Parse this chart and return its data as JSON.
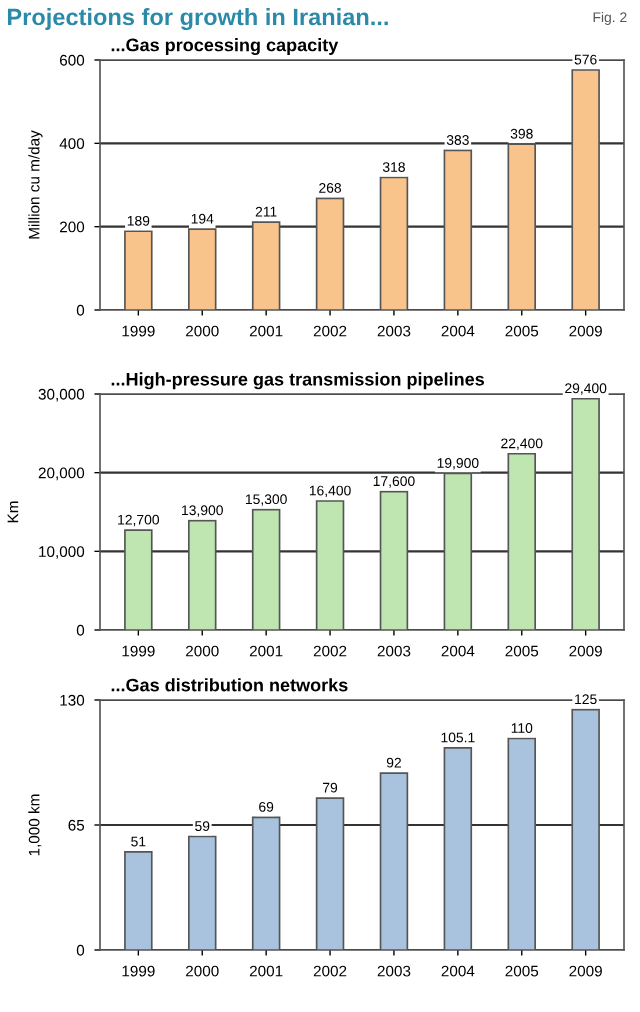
{
  "chart_data": [
    {
      "type": "bar",
      "title": "Projections for growth in Iranian...",
      "subtitle": "...Gas processing capacity",
      "annotations": [
        "Fig. 2"
      ],
      "ylabel": "Million cu m/day",
      "categories": [
        "1999",
        "2000",
        "2001",
        "2002",
        "2003",
        "2004",
        "2005",
        "2009"
      ],
      "values": [
        189,
        194,
        211,
        268,
        318,
        383,
        398,
        576
      ],
      "color": "#f8c48c",
      "data_labels": true,
      "ylim": [
        0,
        600
      ],
      "yticks": [
        0,
        200,
        400,
        600
      ],
      "grid": "y"
    },
    {
      "type": "bar",
      "subtitle": "...High-pressure gas transmission pipelines",
      "ylabel": "Km",
      "categories": [
        "1999",
        "2000",
        "2001",
        "2002",
        "2003",
        "2004",
        "2005",
        "2009"
      ],
      "values": [
        12700,
        13900,
        15300,
        16400,
        17600,
        19900,
        22400,
        29400
      ],
      "color": "#bfe6b0",
      "value_labels": [
        "12,700",
        "13,900",
        "15,300",
        "16,400",
        "17,600",
        "19,900",
        "22,400",
        "29,400"
      ],
      "ylim": [
        0,
        30000
      ],
      "yticks": [
        {
          "value": 0,
          "label": "0"
        },
        {
          "value": 10000,
          "label": "10,000"
        },
        {
          "value": 20000,
          "label": "20,000"
        },
        {
          "value": 30000,
          "label": "30,000"
        }
      ],
      "grid": "y"
    },
    {
      "type": "bar",
      "subtitle": "...Gas distribution networks",
      "ylabel": "1,000 km",
      "categories": [
        "1999",
        "2000",
        "2001",
        "2002",
        "2003",
        "2004",
        "2005",
        "2009"
      ],
      "values": [
        51,
        59,
        69,
        79,
        92,
        105.1,
        110,
        125
      ],
      "color": "#a9c3de",
      "data_labels": true,
      "ylim": [
        0,
        130
      ],
      "yticks": [
        0,
        65,
        130
      ],
      "grid": "y"
    }
  ]
}
